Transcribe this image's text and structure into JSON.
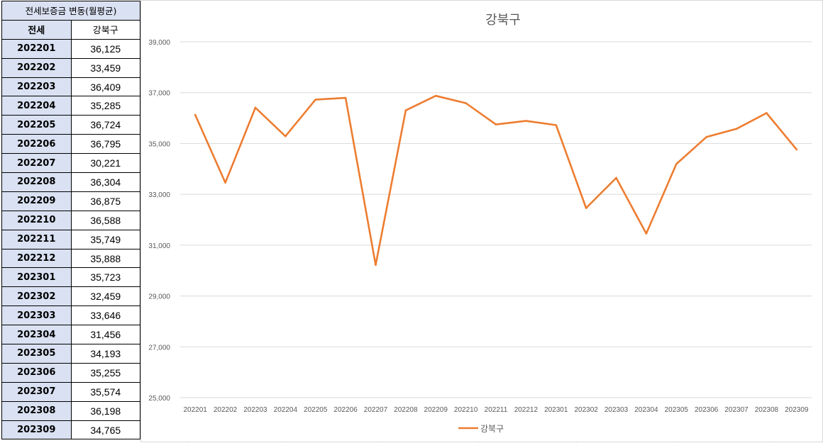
{
  "table": {
    "title": "전세보증금 변동(월평균)",
    "col1_header": "전세",
    "col2_header": "강북구",
    "rows": [
      {
        "label": "202201",
        "value": "36,125"
      },
      {
        "label": "202202",
        "value": "33,459"
      },
      {
        "label": "202203",
        "value": "36,409"
      },
      {
        "label": "202204",
        "value": "35,285"
      },
      {
        "label": "202205",
        "value": "36,724"
      },
      {
        "label": "202206",
        "value": "36,795"
      },
      {
        "label": "202207",
        "value": "30,221"
      },
      {
        "label": "202208",
        "value": "36,304"
      },
      {
        "label": "202209",
        "value": "36,875"
      },
      {
        "label": "202210",
        "value": "36,588"
      },
      {
        "label": "202211",
        "value": "35,749"
      },
      {
        "label": "202212",
        "value": "35,888"
      },
      {
        "label": "202301",
        "value": "35,723"
      },
      {
        "label": "202302",
        "value": "32,459"
      },
      {
        "label": "202303",
        "value": "33,646"
      },
      {
        "label": "202304",
        "value": "31,456"
      },
      {
        "label": "202305",
        "value": "34,193"
      },
      {
        "label": "202306",
        "value": "35,255"
      },
      {
        "label": "202307",
        "value": "35,574"
      },
      {
        "label": "202308",
        "value": "36,198"
      },
      {
        "label": "202309",
        "value": "34,765"
      }
    ]
  },
  "chart_data": {
    "type": "line",
    "title": "강북구",
    "xlabel": "",
    "ylabel": "",
    "categories": [
      "202201",
      "202202",
      "202203",
      "202204",
      "202205",
      "202206",
      "202207",
      "202208",
      "202209",
      "202210",
      "202211",
      "202212",
      "202301",
      "202302",
      "202303",
      "202304",
      "202305",
      "202306",
      "202307",
      "202308",
      "202309"
    ],
    "series": [
      {
        "name": "강북구",
        "color": "#ed7d31",
        "values": [
          36125,
          33459,
          36409,
          35285,
          36724,
          36795,
          30221,
          36304,
          36875,
          36588,
          35749,
          35888,
          35723,
          32459,
          33646,
          31456,
          34193,
          35255,
          35574,
          36198,
          34765
        ]
      }
    ],
    "ylim": [
      25000,
      39000
    ],
    "yticks": [
      25000,
      27000,
      29000,
      31000,
      33000,
      35000,
      37000,
      39000
    ],
    "ytick_labels": [
      "25,000",
      "27,000",
      "29,000",
      "31,000",
      "33,000",
      "35,000",
      "37,000",
      "39,000"
    ],
    "grid": true,
    "legend": "bottom"
  }
}
